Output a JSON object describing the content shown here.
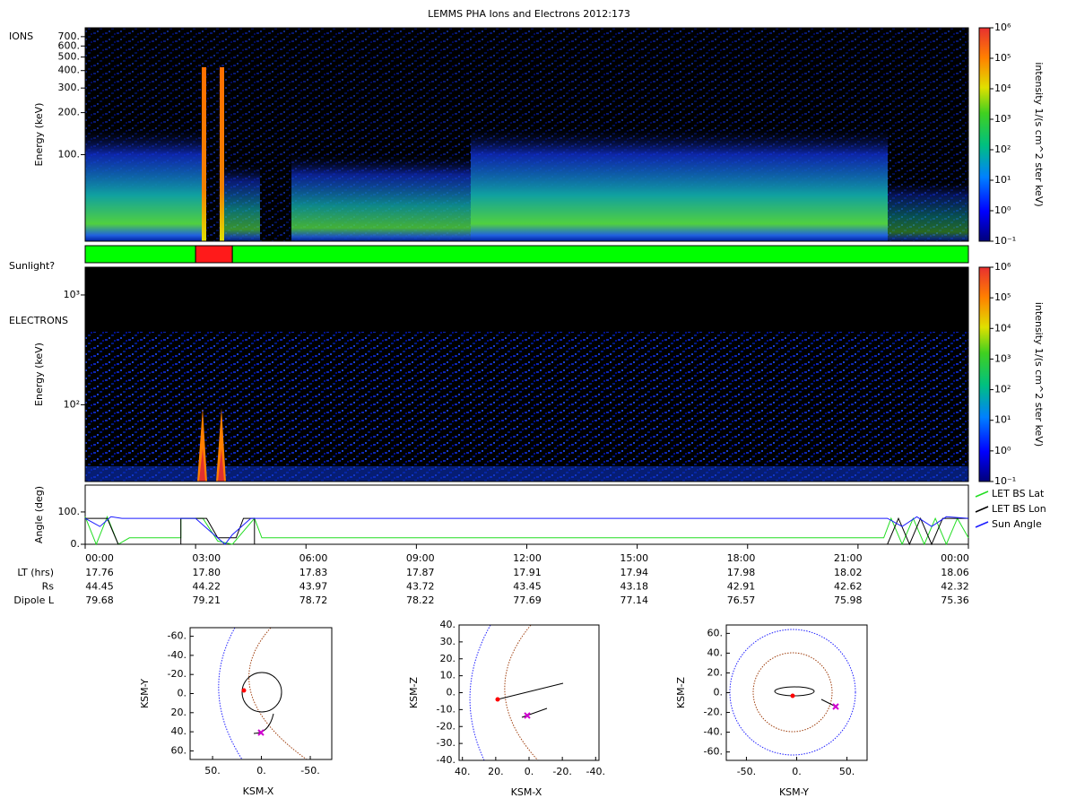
{
  "title": "LEMMS PHA Ions and Electrons  2012:173",
  "ions": {
    "label": "IONS",
    "ylabel": "Energy (keV)",
    "log": true,
    "ylim": [
      24,
      810
    ],
    "yticks": [
      {
        "value": 100,
        "label": "100."
      },
      {
        "value": 200,
        "label": "200."
      },
      {
        "value": 300,
        "label": "300."
      },
      {
        "value": 400,
        "label": "400."
      },
      {
        "value": 500,
        "label": "500."
      },
      {
        "value": 600,
        "label": "600."
      },
      {
        "value": 700,
        "label": "700."
      }
    ],
    "colorbar": {
      "label": "intensity 1/(s cm^2 ster keV)",
      "lim": [
        0.1,
        1000000
      ],
      "ticks": [
        {
          "value": 0.1,
          "label": "10⁻¹"
        },
        {
          "value": 1,
          "label": "10⁰"
        },
        {
          "value": 10,
          "label": "10¹"
        },
        {
          "value": 100,
          "label": "10²"
        },
        {
          "value": 1000,
          "label": "10³"
        },
        {
          "value": 10000,
          "label": "10⁴"
        },
        {
          "value": 100000,
          "label": "10⁵"
        },
        {
          "value": 1000000,
          "label": "10⁶"
        }
      ]
    }
  },
  "sunlight": {
    "label": "Sunlight?",
    "xlim": [
      0,
      24
    ],
    "segments": [
      {
        "start": 0,
        "end": 3,
        "color": "#00ff00"
      },
      {
        "start": 3,
        "end": 4,
        "color": "#ff1a1a"
      },
      {
        "start": 4,
        "end": 24,
        "color": "#00ff00"
      }
    ]
  },
  "electrons": {
    "label": "ELECTRONS",
    "ylabel": "Energy (keV)",
    "log": true,
    "ylim": [
      20,
      1790
    ],
    "yticks": [
      {
        "value": 100,
        "label": "10²"
      },
      {
        "value": 1000,
        "label": "10³"
      }
    ],
    "colorbar": {
      "label": "intensity 1/(s cm^2 ster keV)",
      "lim": [
        0.1,
        1000000
      ],
      "ticks": [
        {
          "value": 0.1,
          "label": "10⁻¹"
        },
        {
          "value": 1,
          "label": "10⁰"
        },
        {
          "value": 10,
          "label": "10¹"
        },
        {
          "value": 100,
          "label": "10²"
        },
        {
          "value": 1000,
          "label": "10³"
        },
        {
          "value": 10000,
          "label": "10⁴"
        },
        {
          "value": 100000,
          "label": "10⁵"
        },
        {
          "value": 1000000,
          "label": "10⁶"
        }
      ]
    }
  },
  "angles": {
    "ylabel": "Angle (deg)",
    "xlim": [
      0,
      24
    ],
    "ylim": [
      0,
      183
    ],
    "yticks": [
      {
        "value": 0,
        "label": "0."
      },
      {
        "value": 100,
        "label": "100."
      }
    ],
    "series": [
      {
        "name": "LET BS Lat",
        "color": "#22dd22",
        "x": [
          0,
          0.3,
          0.6,
          0.9,
          1.2,
          2.6,
          2.6,
          3.2,
          3.6,
          4,
          4.6,
          4.8,
          21.7,
          21.9,
          22.2,
          22.5,
          22.8,
          23.1,
          23.4,
          23.7,
          24
        ],
        "values": [
          85,
          0,
          85,
          0,
          20,
          20,
          80,
          80,
          10,
          0,
          80,
          20,
          20,
          80,
          0,
          80,
          0,
          80,
          0,
          80,
          20
        ]
      },
      {
        "name": "LET BS Lon",
        "color": "#000000",
        "x": [
          0,
          0.6,
          0.9,
          2.6,
          2.6,
          3.3,
          3.6,
          4.1,
          4.3,
          4.6,
          4.6,
          21.8,
          22.1,
          22.4,
          22.7,
          23,
          23.3,
          24
        ],
        "values": [
          80,
          80,
          0,
          0,
          80,
          80,
          20,
          20,
          80,
          80,
          0,
          0,
          80,
          0,
          80,
          0,
          80,
          80
        ]
      },
      {
        "name": "Sun Angle",
        "color": "#1a1aff",
        "x": [
          0,
          0.4,
          0.7,
          1,
          3,
          3.5,
          3.8,
          4,
          4.5,
          21.8,
          22.2,
          22.6,
          23,
          23.4,
          24
        ],
        "values": [
          80,
          55,
          85,
          80,
          80,
          30,
          0,
          30,
          80,
          80,
          55,
          85,
          55,
          85,
          80
        ]
      }
    ]
  },
  "time": {
    "ticks": [
      "00:00",
      "03:00",
      "06:00",
      "09:00",
      "12:00",
      "15:00",
      "18:00",
      "21:00",
      "00:00"
    ],
    "rows": [
      {
        "label": "LT (hrs)",
        "values": [
          "17.76",
          "17.80",
          "17.83",
          "17.87",
          "17.91",
          "17.94",
          "17.98",
          "18.02",
          "18.06"
        ]
      },
      {
        "label": "Rs",
        "values": [
          "44.45",
          "44.22",
          "43.97",
          "43.72",
          "43.45",
          "43.18",
          "42.91",
          "42.62",
          "42.32"
        ]
      },
      {
        "label": "Dipole L",
        "values": [
          "79.68",
          "79.21",
          "78.72",
          "78.22",
          "77.69",
          "77.14",
          "76.57",
          "75.98",
          "75.36"
        ]
      }
    ]
  },
  "orbits": [
    {
      "xlabel": "KSM-X",
      "ylabel": "KSM-Y",
      "xlim": [
        73,
        -72
      ],
      "ylim": [
        69,
        -69
      ],
      "xticks": [
        {
          "value": 50,
          "label": "50."
        },
        {
          "value": 0,
          "label": "0."
        },
        {
          "value": -50,
          "label": "-50."
        }
      ],
      "yticks": [
        {
          "value": -60,
          "label": "-60."
        },
        {
          "value": -40,
          "label": "-40."
        },
        {
          "value": -20,
          "label": "-20."
        },
        {
          "value": 0,
          "label": "0."
        },
        {
          "value": 20,
          "label": "20."
        },
        {
          "value": 40,
          "label": "40."
        },
        {
          "value": 60,
          "label": "60."
        }
      ]
    },
    {
      "xlabel": "KSM-X",
      "ylabel": "KSM-Z",
      "xlim": [
        42,
        -42
      ],
      "ylim": [
        -40,
        40
      ],
      "xticks": [
        {
          "value": 40,
          "label": "40."
        },
        {
          "value": 20,
          "label": "20."
        },
        {
          "value": 0,
          "label": "0."
        },
        {
          "value": -20,
          "label": "-20."
        },
        {
          "value": -40,
          "label": "-40."
        }
      ],
      "yticks": [
        {
          "value": 40,
          "label": "40."
        },
        {
          "value": 30,
          "label": "30."
        },
        {
          "value": 20,
          "label": "20."
        },
        {
          "value": 10,
          "label": "10."
        },
        {
          "value": 0,
          "label": "0."
        },
        {
          "value": -10,
          "label": "-10."
        },
        {
          "value": -20,
          "label": "-20."
        },
        {
          "value": -30,
          "label": "-30."
        },
        {
          "value": -40,
          "label": "-40."
        }
      ]
    },
    {
      "xlabel": "KSM-Y",
      "ylabel": "KSM-Z",
      "xlim": [
        -70,
        70
      ],
      "ylim": [
        -68.5,
        68.5
      ],
      "xticks": [
        {
          "value": -50,
          "label": "-50."
        },
        {
          "value": 0,
          "label": "0."
        },
        {
          "value": 50,
          "label": "50."
        }
      ],
      "yticks": [
        {
          "value": 60,
          "label": "60."
        },
        {
          "value": 40,
          "label": "40."
        },
        {
          "value": 20,
          "label": "20."
        },
        {
          "value": 0,
          "label": "0."
        },
        {
          "value": -20,
          "label": "-20."
        },
        {
          "value": -40,
          "label": "-40."
        },
        {
          "value": -60,
          "label": "-60."
        }
      ]
    }
  ]
}
